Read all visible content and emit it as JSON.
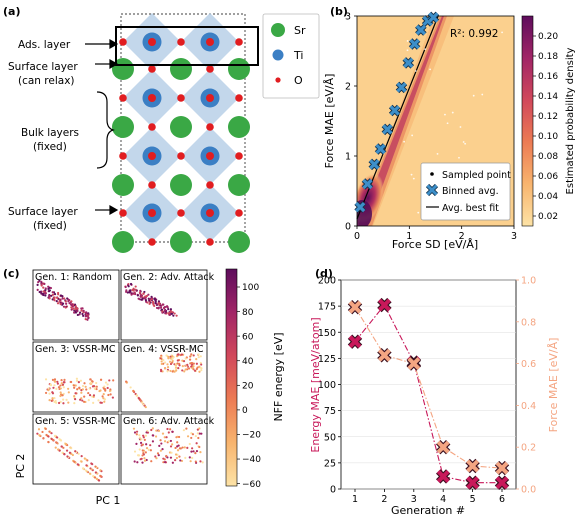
{
  "panels": {
    "a": {
      "label": "(a)",
      "layers": {
        "ads": "Ads. layer",
        "surface_relax_1": "Surface layer",
        "surface_relax_2": "(can relax)",
        "bulk_1": "Bulk layers",
        "bulk_2": "(fixed)",
        "surface_fixed_1": "Surface layer",
        "surface_fixed_2": "(fixed)"
      },
      "legend": {
        "sr": "Sr",
        "ti": "Ti",
        "o": "O"
      },
      "colors": {
        "sr": "#3aa845",
        "ti": "#3b7fc4",
        "o": "#e11d20",
        "octahedron": "#b4cde6"
      }
    },
    "b": {
      "label": "(b)",
      "annotation": "R²: 0.992",
      "colorbar_label": "Estimated probability density",
      "colorbar_ticks": [
        "0.20",
        "0.18",
        "0.16",
        "0.14",
        "0.12",
        "0.10",
        "0.08",
        "0.06",
        "0.04",
        "0.02"
      ],
      "legend": {
        "sampled": "Sampled point",
        "binned": "Binned avg.",
        "fit": "Avg. best fit"
      }
    },
    "c": {
      "label": "(c)",
      "subplots": [
        "Gen. 1: Random",
        "Gen. 2: Adv. Attack",
        "Gen. 3: VSSR-MC",
        "Gen. 4: VSSR-MC",
        "Gen. 5: VSSR-MC",
        "Gen. 6: Adv. Attack"
      ],
      "xlabel": "PC 1",
      "ylabel": "PC 2",
      "colorbar_label": "NFF energy [eV]",
      "colorbar_ticks": [
        "100",
        "80",
        "60",
        "40",
        "20",
        "0",
        "−20",
        "−40",
        "−60"
      ]
    },
    "d": {
      "label": "(d)"
    }
  },
  "chart_data": [
    {
      "type": "scatter",
      "panel": "b",
      "xlabel": "Force SD [eV/Å]",
      "ylabel": "Force MAE [eV/Å]",
      "xlim": [
        0,
        3
      ],
      "ylim": [
        0,
        3
      ],
      "xticks": [
        "0",
        "1",
        "2",
        "3"
      ],
      "yticks": [
        "0",
        "1",
        "2",
        "3"
      ],
      "series": [
        {
          "name": "Binned avg.",
          "x": [
            0.06,
            0.2,
            0.33,
            0.45,
            0.58,
            0.72,
            0.85,
            0.98,
            1.1,
            1.22,
            1.35,
            1.46
          ],
          "y": [
            0.27,
            0.6,
            0.88,
            1.1,
            1.38,
            1.65,
            1.98,
            2.33,
            2.6,
            2.8,
            2.93,
            2.98
          ]
        },
        {
          "name": "Avg. best fit",
          "x": [
            0.0,
            1.55
          ],
          "y": [
            0.1,
            3.0
          ]
        }
      ],
      "colorbar_range": [
        0.01,
        0.22
      ]
    },
    {
      "type": "line",
      "panel": "d",
      "xlabel": "Generation #",
      "ylabel": "Energy MAE [meV/atom]",
      "ylabel_right": "Force MAE [eV/Å]",
      "x": [
        1,
        2,
        3,
        4,
        5,
        6
      ],
      "ylim": [
        0,
        200
      ],
      "ylim_right": [
        0,
        1.0
      ],
      "yticks": [
        "0",
        "25",
        "50",
        "75",
        "100",
        "125",
        "150",
        "175",
        "200"
      ],
      "yticks_right": [
        "0.0",
        "0.2",
        "0.4",
        "0.6",
        "0.8",
        "1.0"
      ],
      "series": [
        {
          "name": "Energy MAE [meV/atom]",
          "axis": "left",
          "color": "#c8185a",
          "values": [
            141,
            176,
            121,
            12,
            6,
            6
          ]
        },
        {
          "name": "Force MAE [eV/Å]",
          "axis": "right",
          "color": "#f4a582",
          "values": [
            0.87,
            0.64,
            0.6,
            0.2,
            0.11,
            0.1
          ]
        }
      ]
    }
  ]
}
